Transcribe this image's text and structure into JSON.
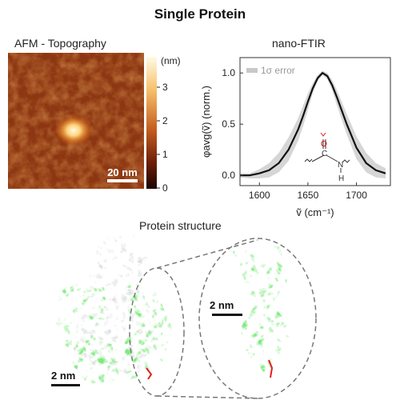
{
  "figure_title": "Single Protein",
  "afm": {
    "title": "AFM - Topography",
    "scalebar": "20 nm",
    "colorbar_unit": "(nm)",
    "colorbar_ticks": [
      "3",
      "2",
      "1",
      "0"
    ],
    "colors": {
      "low": "#1a0500",
      "mid": "#b4471a",
      "high": "#fffbe6"
    }
  },
  "structure": {
    "title": "Protein structure",
    "scalebar_left": "2 nm",
    "scalebar_right": "2 nm",
    "colors": {
      "highlight": "#3cd23c",
      "backbone": "#c8c8c8",
      "marker": "#e02020"
    }
  },
  "chart_data": {
    "type": "line",
    "title": "nano-FTIR",
    "xlabel": "ṽ (cm⁻¹)",
    "ylabel": "φavg(ṽ) (norm.)",
    "xlim": [
      1580,
      1735
    ],
    "ylim": [
      -0.1,
      1.15
    ],
    "xticks": [
      1600,
      1650,
      1700
    ],
    "yticks": [
      0.0,
      0.5,
      1.0
    ],
    "legend": "1σ error",
    "grid": false,
    "series": [
      {
        "x": [
          1580,
          1590,
          1600,
          1610,
          1620,
          1630,
          1640,
          1645,
          1650,
          1655,
          1660,
          1665,
          1670,
          1675,
          1680,
          1690,
          1700,
          1710,
          1720,
          1730
        ],
        "values": [
          0.0,
          0.0,
          0.02,
          0.05,
          0.12,
          0.25,
          0.45,
          0.58,
          0.72,
          0.85,
          0.95,
          1.0,
          0.97,
          0.88,
          0.76,
          0.5,
          0.27,
          0.12,
          0.05,
          0.02
        ],
        "upper": [
          0.02,
          0.02,
          0.06,
          0.12,
          0.22,
          0.37,
          0.56,
          0.68,
          0.8,
          0.9,
          0.98,
          1.02,
          1.0,
          0.93,
          0.83,
          0.6,
          0.38,
          0.22,
          0.12,
          0.07
        ],
        "lower": [
          -0.02,
          -0.03,
          -0.03,
          -0.02,
          0.03,
          0.14,
          0.34,
          0.48,
          0.64,
          0.8,
          0.92,
          0.98,
          0.94,
          0.83,
          0.68,
          0.4,
          0.16,
          0.03,
          -0.02,
          -0.03
        ]
      }
    ],
    "inset_labels": {
      "oxygen": "O",
      "carbon": "C",
      "nitrogen": "N",
      "hydrogen": "H"
    }
  }
}
